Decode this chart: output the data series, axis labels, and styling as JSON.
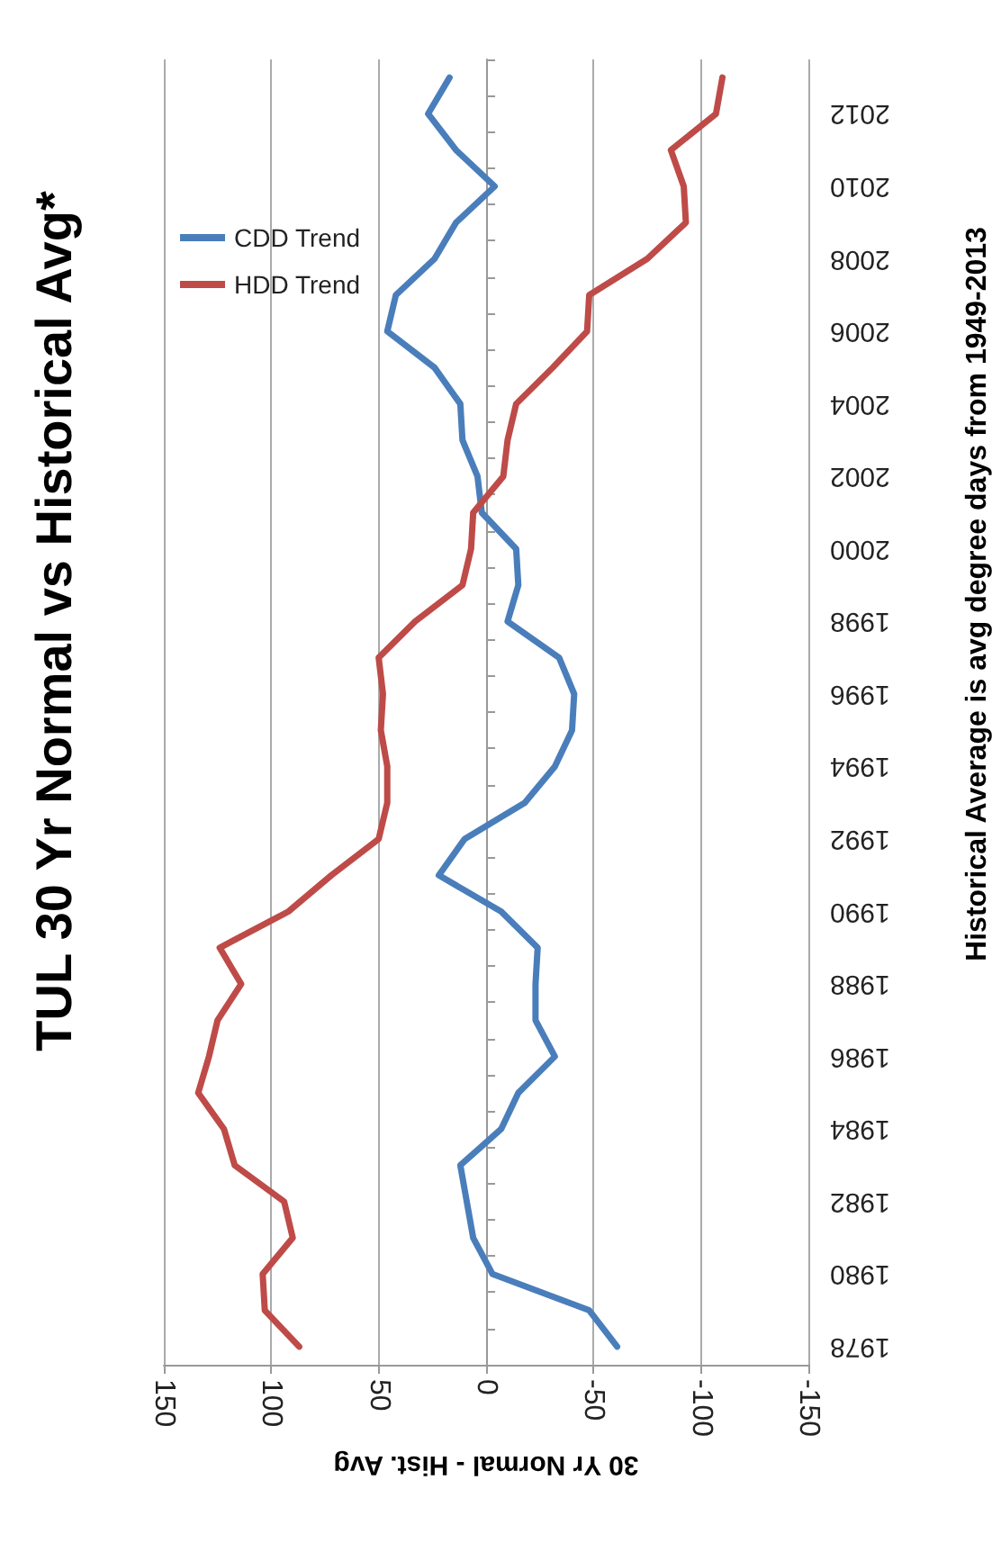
{
  "chart_data": {
    "type": "line",
    "orientation": "horizontal",
    "title": "TUL 30 Yr Normal vs Historical Avg*",
    "xlabel": "30 Yr Normal - Hist. Avg",
    "annotations": [
      "Historical Average is avg degree days from 1949-2013"
    ],
    "categories": [
      null,
      "2012",
      null,
      "2010",
      null,
      "2008",
      null,
      "2006",
      null,
      "2004",
      null,
      "2002",
      null,
      "2000",
      null,
      "1998",
      null,
      "1996",
      null,
      "1994",
      null,
      "1992",
      null,
      "1990",
      null,
      "1988",
      null,
      "1986",
      null,
      "1984",
      null,
      "1982",
      null,
      "1980",
      null,
      "1978"
    ],
    "series": [
      {
        "name": "CDD Trend",
        "color": "#4a7ebb",
        "values": [
          17,
          27,
          14,
          -4,
          14,
          24,
          42,
          46,
          24,
          12,
          11,
          4,
          2,
          -14,
          -15,
          -10,
          -34,
          -41,
          -40,
          -32,
          -18,
          10,
          22,
          -7,
          -24,
          -23,
          -23,
          -32,
          -15,
          -7,
          12,
          9,
          6,
          -3,
          -48,
          -61
        ]
      },
      {
        "name": "HDD Trend",
        "color": "#be4b48",
        "values": [
          -110,
          -107,
          -86,
          -92,
          -93,
          -75,
          -48,
          -47,
          -31,
          -14,
          -10,
          -8,
          6,
          7,
          11,
          33,
          50,
          48,
          49,
          46,
          46,
          50,
          72,
          92,
          124,
          114,
          125,
          129,
          134,
          122,
          117,
          94,
          90,
          104,
          103,
          87
        ]
      }
    ],
    "xlim": [
      150,
      -150
    ],
    "xticks": [
      150,
      100,
      50,
      0,
      -50,
      -100,
      -150
    ],
    "grid": "x",
    "legend": "top left",
    "marker": "none",
    "line_style": "solid"
  }
}
